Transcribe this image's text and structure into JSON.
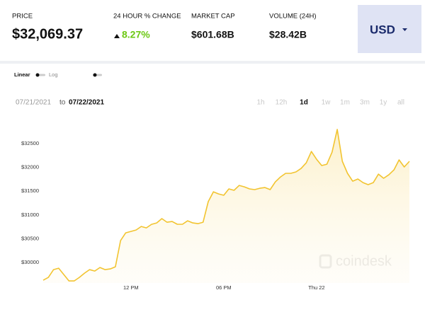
{
  "header": {
    "price_label": "PRICE",
    "price": "$32,069.37",
    "change_label": "24 HOUR % CHANGE",
    "change": "8.27%",
    "market_cap_label": "MARKET CAP",
    "market_cap": "$601.68B",
    "volume_label": "VOLUME (24H)",
    "volume": "$28.42B",
    "currency": "USD"
  },
  "scale_toggle": [
    "Linear",
    "Log"
  ],
  "date_range": {
    "from": "07/21/2021",
    "to_word": "to",
    "to": "07/22/2021"
  },
  "ranges": [
    "1h",
    "12h",
    "1d",
    "1w",
    "1m",
    "3m",
    "1y",
    "all"
  ],
  "active_range": "1d",
  "watermark": "coindesk",
  "chart_data": {
    "type": "line",
    "color": "#f2c430",
    "categories": [
      null,
      null,
      null,
      null,
      null,
      null,
      null,
      null,
      null,
      null,
      null,
      null,
      null,
      null,
      null,
      null,
      null,
      "12 PM",
      null,
      null,
      null,
      null,
      null,
      null,
      null,
      null,
      null,
      null,
      null,
      null,
      null,
      null,
      null,
      null,
      null,
      "06 PM",
      null,
      null,
      null,
      null,
      null,
      null,
      null,
      null,
      null,
      null,
      null,
      null,
      null,
      null,
      null,
      null,
      null,
      "Thu 22",
      null,
      null,
      null,
      null,
      null,
      null,
      null,
      null,
      null,
      null,
      null,
      null,
      null,
      null,
      null,
      null,
      null,
      null
    ],
    "values": [
      29628,
      29688,
      29851,
      29881,
      29747,
      29613,
      29613,
      29688,
      29777,
      29851,
      29821,
      29896,
      29851,
      29866,
      29911,
      30461,
      30625,
      30655,
      30684,
      30759,
      30729,
      30803,
      30833,
      30923,
      30848,
      30863,
      30804,
      30804,
      30878,
      30833,
      30818,
      30848,
      31280,
      31488,
      31443,
      31414,
      31548,
      31518,
      31622,
      31592,
      31548,
      31533,
      31562,
      31577,
      31533,
      31696,
      31800,
      31875,
      31875,
      31905,
      31979,
      32098,
      32336,
      32172,
      32039,
      32068,
      32321,
      32800,
      32128,
      31875,
      31711,
      31756,
      31681,
      31637,
      31681,
      31860,
      31771,
      31845,
      31949,
      32158,
      32009,
      32128
    ],
    "ylim": [
      29570,
      33140
    ],
    "yticks": [
      {
        "value": 30000,
        "label": "$30000"
      },
      {
        "value": 30500,
        "label": "$30500"
      },
      {
        "value": 31000,
        "label": "$31000"
      },
      {
        "value": 31500,
        "label": "$31500"
      },
      {
        "value": 32000,
        "label": "$32000"
      },
      {
        "value": 32500,
        "label": "$32500"
      }
    ],
    "grid": false
  }
}
